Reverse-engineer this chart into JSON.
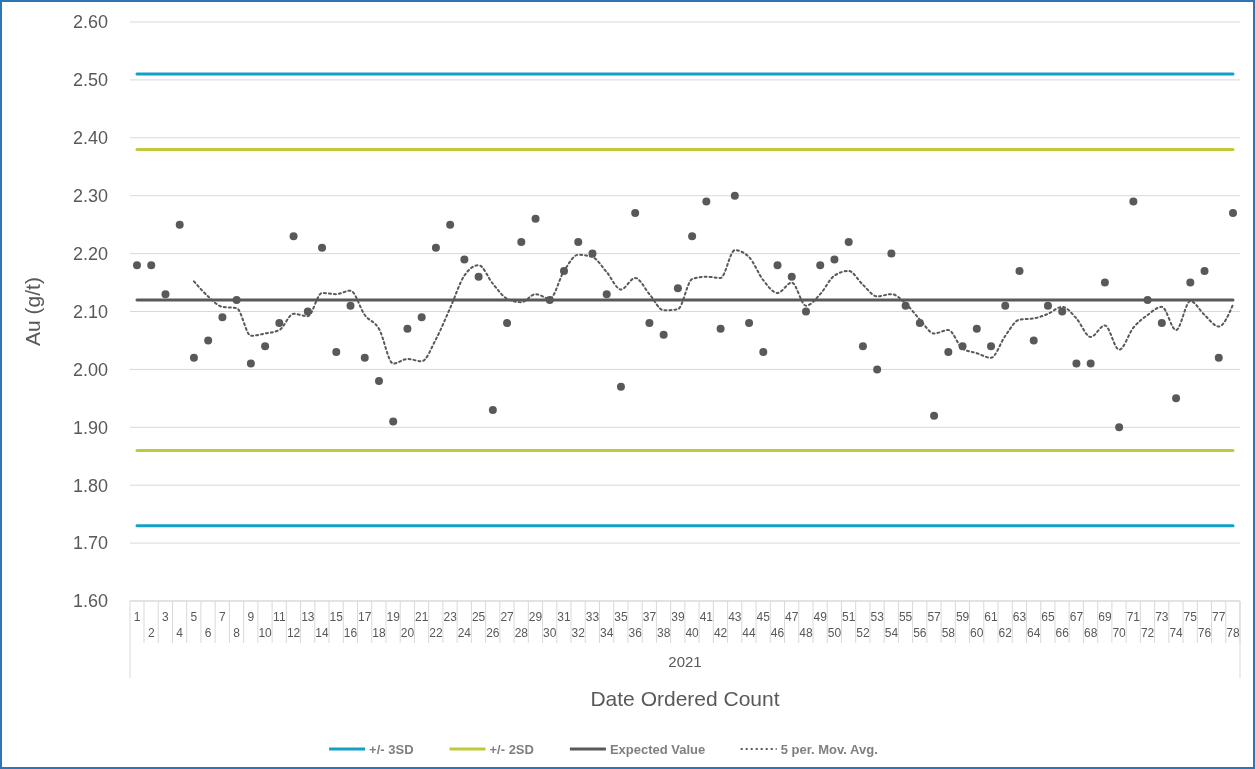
{
  "chart_data": {
    "type": "scatter",
    "xlabel": "Date Ordered Count",
    "ylabel": "Au (g/t)",
    "categories": [
      "1",
      "2",
      "3",
      "4",
      "5",
      "6",
      "7",
      "8",
      "9",
      "10",
      "11",
      "12",
      "13",
      "14",
      "15",
      "16",
      "17",
      "18",
      "19",
      "20",
      "21",
      "22",
      "23",
      "24",
      "25",
      "26",
      "27",
      "28",
      "29",
      "30",
      "31",
      "32",
      "33",
      "34",
      "35",
      "36",
      "37",
      "38",
      "39",
      "40",
      "41",
      "42",
      "43",
      "44",
      "45",
      "46",
      "47",
      "48",
      "49",
      "50",
      "51",
      "52",
      "53",
      "54",
      "55",
      "56",
      "57",
      "58",
      "59",
      "60",
      "61",
      "62",
      "63",
      "64",
      "65",
      "66",
      "67",
      "68",
      "69",
      "70",
      "71",
      "72",
      "73",
      "74",
      "75",
      "76",
      "77",
      "78"
    ],
    "ylim": [
      1.6,
      2.6
    ],
    "yticks": [
      {
        "value": 1.6,
        "label": "1.60"
      },
      {
        "value": 1.7,
        "label": "1.70"
      },
      {
        "value": 1.8,
        "label": "1.80"
      },
      {
        "value": 1.9,
        "label": "1.90"
      },
      {
        "value": 2.0,
        "label": "2.00"
      },
      {
        "value": 2.1,
        "label": "2.10"
      },
      {
        "value": 2.2,
        "label": "2.20"
      },
      {
        "value": 2.3,
        "label": "2.30"
      },
      {
        "value": 2.4,
        "label": "2.40"
      },
      {
        "value": 2.5,
        "label": "2.50"
      },
      {
        "value": 2.6,
        "label": "2.60"
      }
    ],
    "grid": "y",
    "legend": "bottom",
    "annotations": [
      "2021"
    ],
    "series": [
      {
        "name": "+/- 3SD",
        "type": "line",
        "color": "#12a0c8",
        "line_style": "solid",
        "values": [
          2.51,
          2.51,
          2.51,
          2.51,
          2.51,
          2.51,
          2.51,
          2.51,
          2.51,
          2.51,
          2.51,
          2.51,
          2.51,
          2.51,
          2.51,
          2.51,
          2.51,
          2.51,
          2.51,
          2.51,
          2.51,
          2.51,
          2.51,
          2.51,
          2.51,
          2.51,
          2.51,
          2.51,
          2.51,
          2.51,
          2.51,
          2.51,
          2.51,
          2.51,
          2.51,
          2.51,
          2.51,
          2.51,
          2.51,
          2.51,
          2.51,
          2.51,
          2.51,
          2.51,
          2.51,
          2.51,
          2.51,
          2.51,
          2.51,
          2.51,
          2.51,
          2.51,
          2.51,
          2.51,
          2.51,
          2.51,
          2.51,
          2.51,
          2.51,
          2.51,
          2.51,
          2.51,
          2.51,
          2.51,
          2.51,
          2.51,
          2.51,
          2.51,
          2.51,
          2.51,
          2.51,
          2.51,
          2.51,
          2.51,
          2.51,
          2.51,
          2.51,
          2.51
        ]
      },
      {
        "type": "line",
        "color": "#12a0c8",
        "line_style": "solid",
        "values": [
          1.73,
          1.73,
          1.73,
          1.73,
          1.73,
          1.73,
          1.73,
          1.73,
          1.73,
          1.73,
          1.73,
          1.73,
          1.73,
          1.73,
          1.73,
          1.73,
          1.73,
          1.73,
          1.73,
          1.73,
          1.73,
          1.73,
          1.73,
          1.73,
          1.73,
          1.73,
          1.73,
          1.73,
          1.73,
          1.73,
          1.73,
          1.73,
          1.73,
          1.73,
          1.73,
          1.73,
          1.73,
          1.73,
          1.73,
          1.73,
          1.73,
          1.73,
          1.73,
          1.73,
          1.73,
          1.73,
          1.73,
          1.73,
          1.73,
          1.73,
          1.73,
          1.73,
          1.73,
          1.73,
          1.73,
          1.73,
          1.73,
          1.73,
          1.73,
          1.73,
          1.73,
          1.73,
          1.73,
          1.73,
          1.73,
          1.73,
          1.73,
          1.73,
          1.73,
          1.73,
          1.73,
          1.73,
          1.73,
          1.73,
          1.73,
          1.73,
          1.73,
          1.73
        ]
      },
      {
        "name": "+/- 2SD",
        "type": "line",
        "color": "#bfc93a",
        "line_style": "solid",
        "values": [
          2.38,
          2.38,
          2.38,
          2.38,
          2.38,
          2.38,
          2.38,
          2.38,
          2.38,
          2.38,
          2.38,
          2.38,
          2.38,
          2.38,
          2.38,
          2.38,
          2.38,
          2.38,
          2.38,
          2.38,
          2.38,
          2.38,
          2.38,
          2.38,
          2.38,
          2.38,
          2.38,
          2.38,
          2.38,
          2.38,
          2.38,
          2.38,
          2.38,
          2.38,
          2.38,
          2.38,
          2.38,
          2.38,
          2.38,
          2.38,
          2.38,
          2.38,
          2.38,
          2.38,
          2.38,
          2.38,
          2.38,
          2.38,
          2.38,
          2.38,
          2.38,
          2.38,
          2.38,
          2.38,
          2.38,
          2.38,
          2.38,
          2.38,
          2.38,
          2.38,
          2.38,
          2.38,
          2.38,
          2.38,
          2.38,
          2.38,
          2.38,
          2.38,
          2.38,
          2.38,
          2.38,
          2.38,
          2.38,
          2.38,
          2.38,
          2.38,
          2.38,
          2.38
        ]
      },
      {
        "type": "line",
        "color": "#bfc93a",
        "line_style": "solid",
        "values": [
          1.86,
          1.86,
          1.86,
          1.86,
          1.86,
          1.86,
          1.86,
          1.86,
          1.86,
          1.86,
          1.86,
          1.86,
          1.86,
          1.86,
          1.86,
          1.86,
          1.86,
          1.86,
          1.86,
          1.86,
          1.86,
          1.86,
          1.86,
          1.86,
          1.86,
          1.86,
          1.86,
          1.86,
          1.86,
          1.86,
          1.86,
          1.86,
          1.86,
          1.86,
          1.86,
          1.86,
          1.86,
          1.86,
          1.86,
          1.86,
          1.86,
          1.86,
          1.86,
          1.86,
          1.86,
          1.86,
          1.86,
          1.86,
          1.86,
          1.86,
          1.86,
          1.86,
          1.86,
          1.86,
          1.86,
          1.86,
          1.86,
          1.86,
          1.86,
          1.86,
          1.86,
          1.86,
          1.86,
          1.86,
          1.86,
          1.86,
          1.86,
          1.86,
          1.86,
          1.86,
          1.86,
          1.86,
          1.86,
          1.86,
          1.86,
          1.86,
          1.86,
          1.86
        ]
      },
      {
        "name": "Expected Value",
        "type": "line",
        "color": "#595959",
        "line_style": "solid",
        "values": [
          2.12,
          2.12,
          2.12,
          2.12,
          2.12,
          2.12,
          2.12,
          2.12,
          2.12,
          2.12,
          2.12,
          2.12,
          2.12,
          2.12,
          2.12,
          2.12,
          2.12,
          2.12,
          2.12,
          2.12,
          2.12,
          2.12,
          2.12,
          2.12,
          2.12,
          2.12,
          2.12,
          2.12,
          2.12,
          2.12,
          2.12,
          2.12,
          2.12,
          2.12,
          2.12,
          2.12,
          2.12,
          2.12,
          2.12,
          2.12,
          2.12,
          2.12,
          2.12,
          2.12,
          2.12,
          2.12,
          2.12,
          2.12,
          2.12,
          2.12,
          2.12,
          2.12,
          2.12,
          2.12,
          2.12,
          2.12,
          2.12,
          2.12,
          2.12,
          2.12,
          2.12,
          2.12,
          2.12,
          2.12,
          2.12,
          2.12,
          2.12,
          2.12,
          2.12,
          2.12,
          2.12,
          2.12,
          2.12,
          2.12,
          2.12,
          2.12,
          2.12,
          2.12
        ]
      },
      {
        "name": "5 per. Mov. Avg.",
        "type": "line",
        "color": "#595959",
        "line_style": "dotted",
        "values": [
          null,
          null,
          null,
          null,
          2.152,
          2.126,
          2.108,
          2.106,
          2.058,
          2.062,
          2.068,
          2.096,
          2.092,
          2.132,
          2.13,
          2.136,
          2.094,
          2.07,
          2.01,
          2.018,
          2.014,
          2.052,
          2.106,
          2.162,
          2.18,
          2.148,
          2.122,
          2.116,
          2.13,
          2.122,
          2.17,
          2.198,
          2.194,
          2.168,
          2.138,
          2.158,
          2.13,
          2.102,
          2.104,
          2.156,
          2.16,
          2.158,
          2.206,
          2.194,
          2.154,
          2.132,
          2.15,
          2.11,
          2.13,
          2.162,
          2.17,
          2.146,
          2.126,
          2.13,
          2.114,
          2.086,
          2.062,
          2.068,
          2.036,
          2.028,
          2.02,
          2.058,
          2.086,
          2.088,
          2.096,
          2.108,
          2.088,
          2.056,
          2.076,
          2.034,
          2.072,
          2.094,
          2.108,
          2.068,
          2.118,
          2.094,
          2.074,
          2.112
        ]
      },
      {
        "color": "#595959",
        "marker": "circle",
        "values": [
          2.18,
          2.18,
          2.13,
          2.25,
          2.02,
          2.05,
          2.09,
          2.12,
          2.01,
          2.04,
          2.08,
          2.23,
          2.1,
          2.21,
          2.03,
          2.11,
          2.02,
          1.98,
          1.91,
          2.07,
          2.09,
          2.21,
          2.25,
          2.19,
          2.16,
          1.93,
          2.08,
          2.22,
          2.26,
          2.12,
          2.17,
          2.22,
          2.2,
          2.13,
          1.97,
          2.27,
          2.08,
          2.06,
          2.14,
          2.23,
          2.29,
          2.07,
          2.3,
          2.08,
          2.03,
          2.18,
          2.16,
          2.1,
          2.18,
          2.19,
          2.22,
          2.04,
          2.0,
          2.2,
          2.11,
          2.08,
          1.92,
          2.03,
          2.04,
          2.07,
          2.04,
          2.11,
          2.17,
          2.05,
          2.11,
          2.1,
          2.01,
          2.01,
          2.15,
          1.9,
          2.29,
          2.12,
          2.08,
          1.95,
          2.15,
          2.17,
          2.02,
          2.27
        ]
      }
    ]
  }
}
